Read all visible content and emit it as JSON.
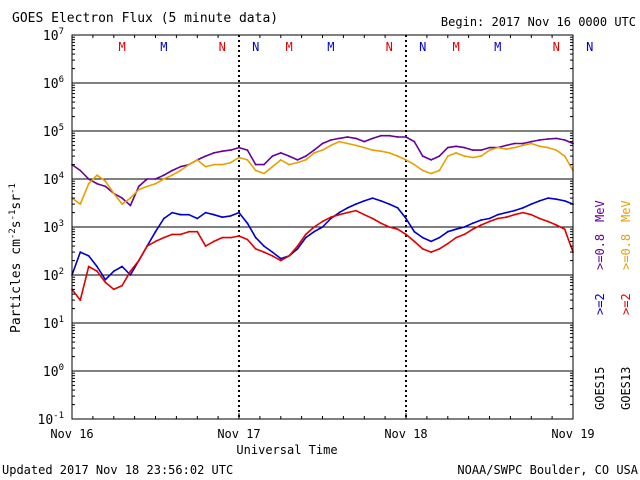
{
  "header": {
    "title": "GOES Electron Flux (5 minute data)",
    "begin": "Begin: 2017 Nov 16 0000 UTC"
  },
  "footer": {
    "updated": "Updated 2017 Nov 18 23:56:02 UTC",
    "source": "NOAA/SWPC Boulder, CO USA"
  },
  "side_labels": {
    "goes15": "GOES15",
    "goes13": "GOES13",
    "ge2_15": ">=2",
    "ge08_15": ">=0.8",
    "mev_15": "MeV",
    "ge2_13": ">=2",
    "ge08_13": ">=0.8",
    "mev_13": "MeV"
  },
  "markers": [
    {
      "label": "M",
      "day": 0.3,
      "color": "#e00000"
    },
    {
      "label": "M",
      "day": 0.55,
      "color": "#0000cc"
    },
    {
      "label": "N",
      "day": 0.9,
      "color": "#e00000"
    },
    {
      "label": "N",
      "day": 1.1,
      "color": "#0000cc"
    },
    {
      "label": "M",
      "day": 1.3,
      "color": "#e00000"
    },
    {
      "label": "M",
      "day": 1.55,
      "color": "#0000cc"
    },
    {
      "label": "N",
      "day": 1.9,
      "color": "#e00000"
    },
    {
      "label": "N",
      "day": 2.1,
      "color": "#0000cc"
    },
    {
      "label": "M",
      "day": 2.3,
      "color": "#e00000"
    },
    {
      "label": "M",
      "day": 2.55,
      "color": "#0000cc"
    },
    {
      "label": "N",
      "day": 2.9,
      "color": "#e00000"
    },
    {
      "label": "N",
      "day": 3.1,
      "color": "#0000cc"
    }
  ],
  "chart_data": {
    "type": "line",
    "title": "GOES Electron Flux (5 minute data)",
    "xlabel": "Universal Time",
    "ylabel": "Particles cm-2s-1sr-1",
    "x_ticks": [
      "Nov 16",
      "Nov 17",
      "Nov 18",
      "Nov 19"
    ],
    "x_unit": "days since 2017 Nov 16 0000 UTC",
    "xlim": [
      0,
      3
    ],
    "yscale": "log",
    "ylim": [
      0.1,
      10000000
    ],
    "y_ticks": [
      {
        "base": "10",
        "exp": "7"
      },
      {
        "base": "10",
        "exp": "6"
      },
      {
        "base": "10",
        "exp": "5"
      },
      {
        "base": "10",
        "exp": "4"
      },
      {
        "base": "10",
        "exp": "3"
      },
      {
        "base": "10",
        "exp": "2"
      },
      {
        "base": "10",
        "exp": "1"
      },
      {
        "base": "10",
        "exp": "0"
      },
      {
        "base": "10",
        "exp": "-1"
      }
    ],
    "threshold": {
      "value": 1000,
      "style": "dashed"
    },
    "grid": "horizontal at decades",
    "series": [
      {
        "name": "GOES15 >=0.8 MeV",
        "color": "#660099",
        "x": [
          0.0,
          0.05,
          0.1,
          0.15,
          0.2,
          0.25,
          0.3,
          0.35,
          0.4,
          0.45,
          0.5,
          0.55,
          0.6,
          0.65,
          0.7,
          0.75,
          0.8,
          0.85,
          0.9,
          0.95,
          1.0,
          1.05,
          1.1,
          1.15,
          1.2,
          1.25,
          1.3,
          1.35,
          1.4,
          1.45,
          1.5,
          1.55,
          1.6,
          1.65,
          1.7,
          1.75,
          1.8,
          1.85,
          1.9,
          1.95,
          2.0,
          2.05,
          2.1,
          2.15,
          2.2,
          2.25,
          2.3,
          2.35,
          2.4,
          2.45,
          2.5,
          2.55,
          2.6,
          2.65,
          2.7,
          2.75,
          2.8,
          2.85,
          2.9,
          2.95,
          3.0
        ],
        "values": [
          20000,
          15000,
          10000,
          8000,
          7000,
          5000,
          4000,
          2800,
          7000,
          10000,
          10000,
          12000,
          15000,
          18000,
          20000,
          25000,
          30000,
          35000,
          38000,
          40000,
          45000,
          40000,
          20000,
          20000,
          30000,
          35000,
          30000,
          25000,
          30000,
          40000,
          55000,
          65000,
          70000,
          75000,
          70000,
          60000,
          70000,
          80000,
          80000,
          75000,
          75000,
          60000,
          30000,
          25000,
          30000,
          45000,
          48000,
          45000,
          40000,
          40000,
          45000,
          45000,
          50000,
          55000,
          55000,
          60000,
          65000,
          68000,
          70000,
          65000,
          55000
        ]
      },
      {
        "name": "GOES13 >=0.8 MeV",
        "color": "#e8a000",
        "x": [
          0.0,
          0.05,
          0.1,
          0.15,
          0.2,
          0.25,
          0.3,
          0.35,
          0.4,
          0.45,
          0.5,
          0.55,
          0.6,
          0.65,
          0.7,
          0.75,
          0.8,
          0.85,
          0.9,
          0.95,
          1.0,
          1.05,
          1.1,
          1.15,
          1.2,
          1.25,
          1.3,
          1.35,
          1.4,
          1.45,
          1.5,
          1.55,
          1.6,
          1.65,
          1.7,
          1.75,
          1.8,
          1.85,
          1.9,
          1.95,
          2.0,
          2.05,
          2.1,
          2.15,
          2.2,
          2.25,
          2.3,
          2.35,
          2.4,
          2.45,
          2.5,
          2.55,
          2.6,
          2.65,
          2.7,
          2.75,
          2.8,
          2.85,
          2.9,
          2.95,
          3.0
        ],
        "values": [
          4000,
          3000,
          8000,
          12000,
          9000,
          5000,
          3000,
          4000,
          6000,
          7000,
          8000,
          10000,
          12000,
          15000,
          20000,
          25000,
          18000,
          20000,
          20000,
          22000,
          28000,
          25000,
          15000,
          13000,
          18000,
          25000,
          20000,
          22000,
          25000,
          35000,
          40000,
          50000,
          60000,
          55000,
          50000,
          45000,
          40000,
          38000,
          35000,
          30000,
          25000,
          20000,
          15000,
          13000,
          15000,
          30000,
          35000,
          30000,
          28000,
          30000,
          40000,
          45000,
          42000,
          45000,
          50000,
          55000,
          48000,
          45000,
          40000,
          30000,
          15000
        ]
      },
      {
        "name": "GOES15 >=2 MeV",
        "color": "#0000cc",
        "x": [
          0.0,
          0.05,
          0.1,
          0.15,
          0.2,
          0.25,
          0.3,
          0.35,
          0.4,
          0.45,
          0.5,
          0.55,
          0.6,
          0.65,
          0.7,
          0.75,
          0.8,
          0.85,
          0.9,
          0.95,
          1.0,
          1.05,
          1.1,
          1.15,
          1.2,
          1.25,
          1.3,
          1.35,
          1.4,
          1.45,
          1.5,
          1.55,
          1.6,
          1.65,
          1.7,
          1.75,
          1.8,
          1.85,
          1.9,
          1.95,
          2.0,
          2.05,
          2.1,
          2.15,
          2.2,
          2.25,
          2.3,
          2.35,
          2.4,
          2.45,
          2.5,
          2.55,
          2.6,
          2.65,
          2.7,
          2.75,
          2.8,
          2.85,
          2.9,
          2.95,
          3.0
        ],
        "values": [
          100,
          300,
          250,
          150,
          80,
          120,
          150,
          100,
          200,
          400,
          800,
          1500,
          2000,
          1800,
          1800,
          1500,
          2000,
          1800,
          1600,
          1700,
          2000,
          1200,
          600,
          400,
          300,
          220,
          250,
          350,
          600,
          800,
          1000,
          1500,
          2000,
          2500,
          3000,
          3500,
          4000,
          3500,
          3000,
          2500,
          1500,
          800,
          600,
          500,
          600,
          800,
          900,
          1000,
          1200,
          1400,
          1500,
          1800,
          2000,
          2200,
          2500,
          3000,
          3500,
          4000,
          3800,
          3500,
          3000
        ]
      },
      {
        "name": "GOES13 >=2 MeV",
        "color": "#e00000",
        "x": [
          0.0,
          0.05,
          0.1,
          0.15,
          0.2,
          0.25,
          0.3,
          0.35,
          0.4,
          0.45,
          0.5,
          0.55,
          0.6,
          0.65,
          0.7,
          0.75,
          0.8,
          0.85,
          0.9,
          0.95,
          1.0,
          1.05,
          1.1,
          1.15,
          1.2,
          1.25,
          1.3,
          1.35,
          1.4,
          1.45,
          1.5,
          1.55,
          1.6,
          1.65,
          1.7,
          1.75,
          1.8,
          1.85,
          1.9,
          1.95,
          2.0,
          2.05,
          2.1,
          2.15,
          2.2,
          2.25,
          2.3,
          2.35,
          2.4,
          2.45,
          2.5,
          2.55,
          2.6,
          2.65,
          2.7,
          2.75,
          2.8,
          2.85,
          2.9,
          2.95,
          3.0
        ],
        "values": [
          50,
          30,
          150,
          120,
          70,
          50,
          60,
          120,
          200,
          400,
          500,
          600,
          700,
          700,
          800,
          800,
          400,
          500,
          600,
          600,
          650,
          550,
          350,
          300,
          250,
          200,
          250,
          400,
          700,
          1000,
          1300,
          1600,
          1800,
          2000,
          2200,
          1800,
          1500,
          1200,
          1000,
          900,
          700,
          500,
          350,
          300,
          350,
          450,
          600,
          700,
          900,
          1100,
          1300,
          1500,
          1600,
          1800,
          2000,
          1800,
          1500,
          1300,
          1100,
          900,
          300
        ]
      }
    ]
  }
}
